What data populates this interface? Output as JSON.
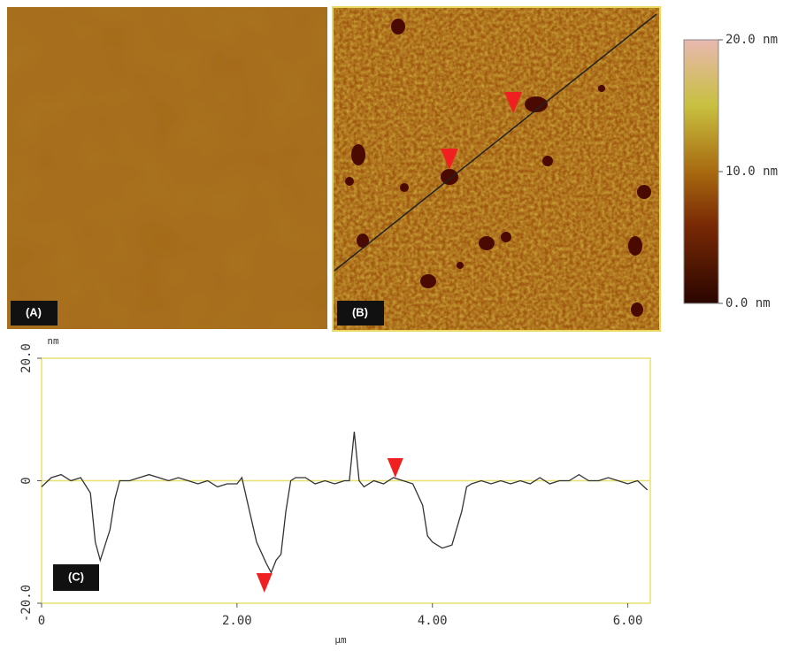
{
  "panels": [
    {
      "label": "(A)"
    },
    {
      "label": "(B)"
    }
  ],
  "colorbar": {
    "ticks": [
      {
        "value": 20,
        "label": "20.0 nm"
      },
      {
        "value": 10,
        "label": "10.0 nm"
      },
      {
        "value": 0,
        "label": "0.0 nm"
      }
    ],
    "lim": [
      0,
      20
    ]
  },
  "chart_data": {
    "type": "line",
    "label": "(C)",
    "ylabel": "nm",
    "xlabel": "µm",
    "x": [
      0,
      0.1,
      0.2,
      0.3,
      0.4,
      0.5,
      0.55,
      0.6,
      0.7,
      0.75,
      0.8,
      0.9,
      1.0,
      1.1,
      1.2,
      1.3,
      1.4,
      1.5,
      1.6,
      1.7,
      1.8,
      1.9,
      2.0,
      2.05,
      2.1,
      2.2,
      2.3,
      2.35,
      2.4,
      2.45,
      2.5,
      2.55,
      2.6,
      2.7,
      2.8,
      2.9,
      3.0,
      3.1,
      3.15,
      3.2,
      3.25,
      3.3,
      3.4,
      3.5,
      3.6,
      3.7,
      3.8,
      3.9,
      3.95,
      4.0,
      4.1,
      4.2,
      4.3,
      4.35,
      4.4,
      4.5,
      4.6,
      4.7,
      4.8,
      4.9,
      5.0,
      5.1,
      5.2,
      5.3,
      5.4,
      5.5,
      5.6,
      5.7,
      5.8,
      5.9,
      6.0,
      6.1,
      6.2
    ],
    "values": [
      -1,
      0.5,
      1,
      0,
      0.5,
      -2,
      -10,
      -13,
      -8,
      -3,
      0,
      0,
      0.5,
      1,
      0.5,
      0,
      0.5,
      0,
      -0.5,
      0,
      -1,
      -0.5,
      -0.5,
      0.5,
      -3,
      -10,
      -13.5,
      -15,
      -13,
      -12,
      -5,
      0,
      0.5,
      0.5,
      -0.5,
      0,
      -0.5,
      0,
      0,
      8,
      0,
      -1,
      0,
      -0.5,
      0.5,
      0,
      -0.5,
      -4,
      -9,
      -10,
      -11,
      -10.5,
      -5,
      -1,
      -0.5,
      0,
      -0.5,
      0,
      -0.5,
      0,
      -0.5,
      0.5,
      -0.5,
      0,
      0,
      1,
      0,
      0,
      0.5,
      0,
      -0.5,
      0,
      -1.5
    ],
    "color": "#333333",
    "cursor_x": [
      2.28,
      3.62
    ],
    "zero_line": true,
    "xlim": [
      0,
      6.23
    ],
    "ylim": [
      -20,
      20
    ],
    "xticks": [
      0,
      {
        "value": 2,
        "label": "2.00"
      },
      {
        "value": 4,
        "label": "4.00"
      },
      {
        "value": 6,
        "label": "6.00"
      }
    ],
    "yticks": [
      {
        "value": 20,
        "label": "20.0"
      },
      0,
      {
        "value": -20,
        "label": "-20.0"
      }
    ]
  }
}
